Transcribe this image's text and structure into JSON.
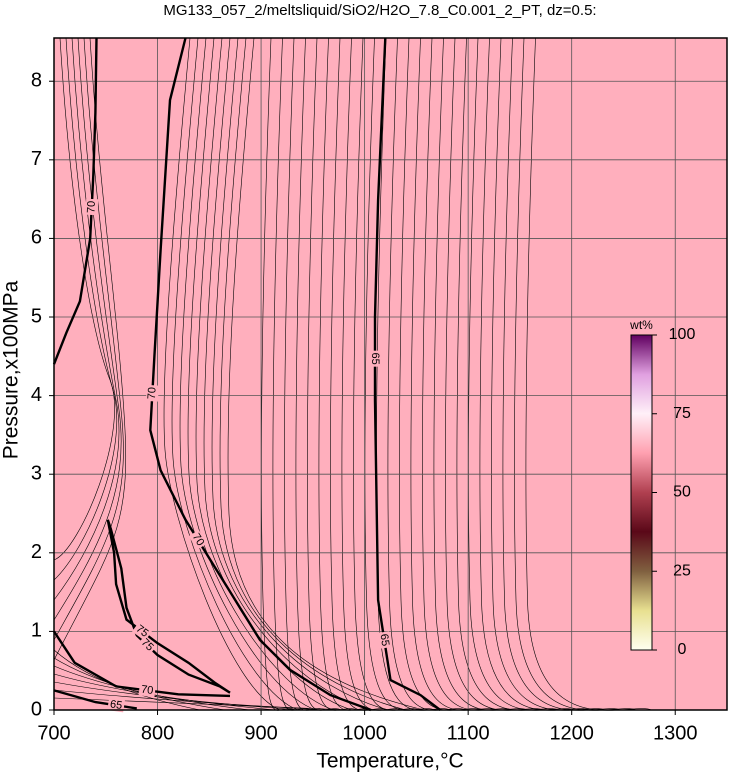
{
  "chart_data": {
    "type": "contour",
    "title": "MG133_057_2/meltsliquid/SiO2/H2O_7.8_C0.001_2_PT, dz=0.5:",
    "x_label": "Temperature,°C",
    "y_label": "Pressure,x100MPa",
    "xlim": [
      700,
      1350
    ],
    "ylim": [
      0,
      8.55
    ],
    "xticks": [
      700,
      800,
      900,
      1000,
      1100,
      1200,
      1300
    ],
    "yticks": [
      0,
      1,
      2,
      3,
      4,
      5,
      6,
      7,
      8
    ],
    "grid": true,
    "background": "#ffafbd",
    "contours": [
      {
        "level": 70,
        "color": "#000000",
        "x": [
          741,
          740,
          738,
          735,
          725,
          712,
          703,
          700
        ],
        "y": [
          8.55,
          7.6,
          6.8,
          6.0,
          5.2,
          4.8,
          4.5,
          4.4
        ]
      },
      {
        "level": 70,
        "color": "#000000",
        "x": [
          827,
          812,
          803,
          797,
          793,
          803,
          827,
          851,
          875,
          899,
          928,
          967,
          1006
        ],
        "y": [
          8.55,
          7.76,
          5.85,
          4.5,
          3.56,
          3.05,
          2.42,
          1.91,
          1.4,
          0.89,
          0.51,
          0.19,
          0
        ]
      },
      {
        "level": 65,
        "color": "#000000",
        "x": [
          1020,
          1013,
          1010,
          1010,
          1013,
          1025,
          1054,
          1073
        ],
        "y": [
          8.55,
          6.49,
          5.0,
          3.94,
          1.4,
          0.38,
          0.19,
          0
        ]
      },
      {
        "level": 75,
        "color": "#000000",
        "x": [
          752,
          758,
          760,
          770,
          800,
          830,
          855,
          870,
          860,
          830,
          800,
          780,
          770,
          765,
          755,
          752
        ],
        "y": [
          2.42,
          2.0,
          1.6,
          1.15,
          0.85,
          0.6,
          0.35,
          0.22,
          0.3,
          0.45,
          0.7,
          0.95,
          1.3,
          1.8,
          2.3,
          2.42
        ]
      },
      {
        "level": 70,
        "color": "#000000",
        "x": [
          700,
          720,
          760,
          820,
          870
        ],
        "y": [
          1.0,
          0.6,
          0.3,
          0.2,
          0.18
        ]
      },
      {
        "level": 65,
        "color": "#000000",
        "x": [
          700,
          740,
          780
        ],
        "y": [
          0.25,
          0.1,
          0.02
        ]
      }
    ],
    "colorbar": {
      "title": "wt%",
      "lim": [
        0,
        100
      ],
      "ticks": [
        0,
        25,
        50,
        75,
        100
      ],
      "colors": [
        "#fffff0",
        "#e8e090",
        "#806040",
        "#5a0818",
        "#b04050",
        "#ffa0b0",
        "#fff0f8",
        "#e0a0e0",
        "#600060"
      ]
    }
  }
}
